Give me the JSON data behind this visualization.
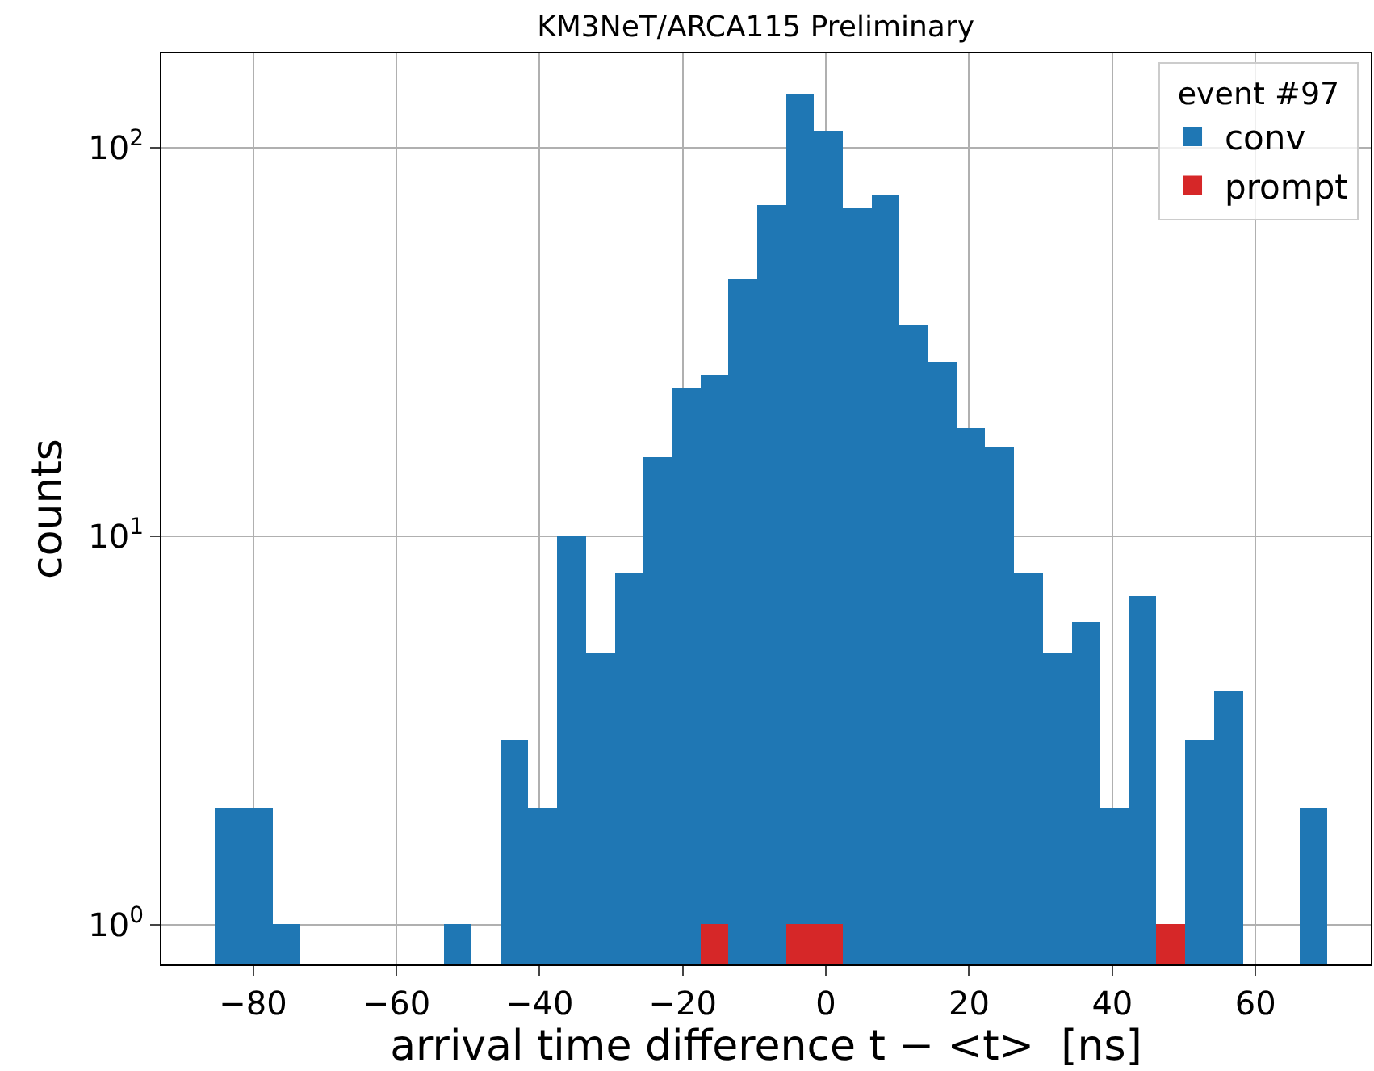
{
  "chart_data": {
    "type": "histogram",
    "title": "KM3NeT/ARCA115 Preliminary",
    "xlabel": "arrival time difference t − <t>  [ns]",
    "ylabel": "counts",
    "legend_title": "event #97",
    "bins": [
      -85.3,
      -81.3,
      -77.3,
      -73.4,
      -53.4,
      -49.4,
      -45.5,
      -41.5,
      -37.5,
      -33.5,
      -29.5,
      -25.5,
      -21.5,
      -17.5,
      -13.6,
      -9.6,
      -5.6,
      -1.6,
      2.4,
      6.4,
      10.3,
      14.3,
      18.3,
      22.3,
      26.3,
      30.3,
      34.3,
      38.2,
      42.2,
      46.2,
      50.2,
      54.2,
      58.2,
      66.1,
      70.1
    ],
    "series": [
      {
        "name": "conv",
        "color": "#1f77b4",
        "values": [
          2,
          2,
          1,
          null,
          1,
          null,
          3,
          2,
          10,
          5,
          8,
          16,
          24,
          26,
          46,
          71,
          138,
          111,
          70,
          75,
          35,
          28,
          19,
          17,
          8,
          5,
          6,
          2,
          7,
          null,
          3,
          4,
          null,
          2
        ]
      },
      {
        "name": "prompt",
        "color": "#d62728",
        "values": [
          null,
          null,
          null,
          null,
          null,
          null,
          null,
          null,
          null,
          null,
          null,
          null,
          null,
          1,
          null,
          null,
          1,
          1,
          null,
          null,
          null,
          null,
          null,
          null,
          null,
          null,
          null,
          null,
          null,
          1,
          null,
          null,
          null,
          null
        ]
      }
    ],
    "log": "y",
    "xlim": [
      -92.8,
      76.1
    ],
    "ylim": [
      0.79,
      175
    ],
    "xticks": [
      {
        "value": -80,
        "label": "−80"
      },
      {
        "value": -60,
        "label": "−60"
      },
      {
        "value": -40,
        "label": "−40"
      },
      {
        "value": -20,
        "label": "−20"
      },
      0,
      20,
      40,
      60
    ],
    "yticks": [
      {
        "value": 1,
        "label": "10$^{0}$"
      },
      {
        "value": 10,
        "label": "10$^{1}$"
      },
      {
        "value": 100,
        "label": "10$^{2}$"
      }
    ],
    "grid": true,
    "legend": "top right"
  }
}
